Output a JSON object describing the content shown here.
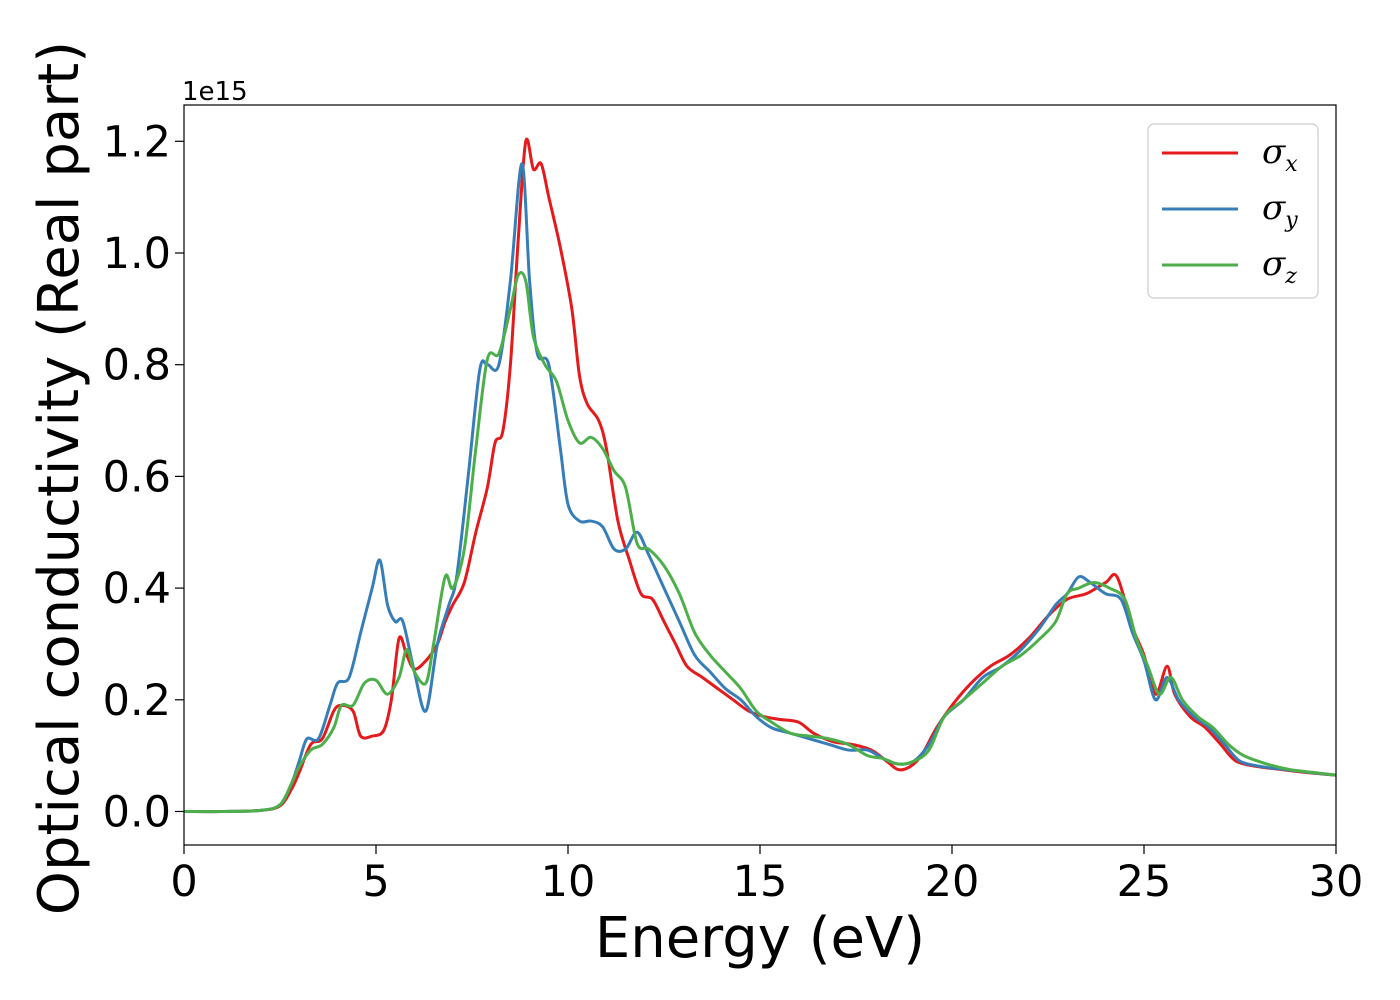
{
  "chart_data": {
    "type": "line",
    "xlabel": "Energy (eV)",
    "ylabel": "Optical conductivity (Real part)",
    "y_offset_label": "1e15",
    "y_multiplier": 1000000000000000.0,
    "xlim": [
      0,
      30
    ],
    "ylim": [
      -0.06,
      1.265
    ],
    "x_ticks": [
      0,
      5,
      10,
      15,
      20,
      25,
      30
    ],
    "y_ticks": [
      0.0,
      0.2,
      0.4,
      0.6,
      0.8,
      1.0,
      1.2
    ],
    "x_tick_labels": [
      "0",
      "5",
      "10",
      "15",
      "20",
      "25",
      "30"
    ],
    "y_tick_labels": [
      "0.0",
      "0.2",
      "0.4",
      "0.6",
      "0.8",
      "1.0",
      "1.2"
    ],
    "grid": false,
    "legend_position": "top-right",
    "series": [
      {
        "name": "σx",
        "symbol": "σ",
        "subscript": "x",
        "color": "#e41a1c",
        "points": [
          [
            0,
            0
          ],
          [
            1,
            0
          ],
          [
            2,
            0.002
          ],
          [
            2.5,
            0.01
          ],
          [
            2.8,
            0.04
          ],
          [
            3.0,
            0.07
          ],
          [
            3.3,
            0.12
          ],
          [
            3.6,
            0.13
          ],
          [
            3.9,
            0.18
          ],
          [
            4.1,
            0.19
          ],
          [
            4.4,
            0.18
          ],
          [
            4.6,
            0.135
          ],
          [
            4.9,
            0.135
          ],
          [
            5.2,
            0.145
          ],
          [
            5.4,
            0.2
          ],
          [
            5.6,
            0.31
          ],
          [
            5.8,
            0.28
          ],
          [
            6.0,
            0.255
          ],
          [
            6.3,
            0.27
          ],
          [
            6.6,
            0.3
          ],
          [
            6.8,
            0.34
          ],
          [
            7.0,
            0.37
          ],
          [
            7.3,
            0.41
          ],
          [
            7.6,
            0.5
          ],
          [
            7.9,
            0.58
          ],
          [
            8.1,
            0.66
          ],
          [
            8.3,
            0.68
          ],
          [
            8.5,
            0.8
          ],
          [
            8.7,
            1.02
          ],
          [
            8.9,
            1.2
          ],
          [
            9.1,
            1.15
          ],
          [
            9.3,
            1.16
          ],
          [
            9.5,
            1.1
          ],
          [
            9.8,
            1.01
          ],
          [
            10.1,
            0.9
          ],
          [
            10.3,
            0.78
          ],
          [
            10.5,
            0.73
          ],
          [
            10.8,
            0.7
          ],
          [
            11.0,
            0.65
          ],
          [
            11.3,
            0.52
          ],
          [
            11.6,
            0.45
          ],
          [
            11.9,
            0.39
          ],
          [
            12.2,
            0.38
          ],
          [
            12.5,
            0.34
          ],
          [
            12.8,
            0.3
          ],
          [
            13.1,
            0.26
          ],
          [
            13.5,
            0.24
          ],
          [
            13.9,
            0.22
          ],
          [
            14.3,
            0.2
          ],
          [
            14.7,
            0.18
          ],
          [
            15.1,
            0.17
          ],
          [
            15.5,
            0.165
          ],
          [
            16.0,
            0.16
          ],
          [
            16.4,
            0.14
          ],
          [
            16.9,
            0.125
          ],
          [
            17.4,
            0.12
          ],
          [
            17.9,
            0.11
          ],
          [
            18.3,
            0.09
          ],
          [
            18.6,
            0.075
          ],
          [
            18.9,
            0.08
          ],
          [
            19.2,
            0.1
          ],
          [
            19.6,
            0.15
          ],
          [
            20.0,
            0.19
          ],
          [
            20.5,
            0.23
          ],
          [
            21.0,
            0.26
          ],
          [
            21.5,
            0.28
          ],
          [
            22.0,
            0.31
          ],
          [
            22.5,
            0.35
          ],
          [
            23.0,
            0.38
          ],
          [
            23.5,
            0.39
          ],
          [
            24.0,
            0.41
          ],
          [
            24.3,
            0.42
          ],
          [
            24.7,
            0.33
          ],
          [
            25.0,
            0.28
          ],
          [
            25.3,
            0.21
          ],
          [
            25.6,
            0.26
          ],
          [
            25.8,
            0.21
          ],
          [
            26.2,
            0.17
          ],
          [
            26.6,
            0.15
          ],
          [
            27.0,
            0.12
          ],
          [
            27.4,
            0.09
          ],
          [
            28.0,
            0.08
          ],
          [
            28.6,
            0.075
          ],
          [
            29.2,
            0.07
          ],
          [
            30,
            0.065
          ]
        ]
      },
      {
        "name": "σy",
        "symbol": "σ",
        "subscript": "y",
        "color": "#377eb8",
        "points": [
          [
            0,
            0
          ],
          [
            1,
            0
          ],
          [
            2,
            0.002
          ],
          [
            2.5,
            0.012
          ],
          [
            2.8,
            0.05
          ],
          [
            3.0,
            0.09
          ],
          [
            3.2,
            0.13
          ],
          [
            3.5,
            0.13
          ],
          [
            3.8,
            0.19
          ],
          [
            4.0,
            0.23
          ],
          [
            4.3,
            0.24
          ],
          [
            4.6,
            0.32
          ],
          [
            4.9,
            0.4
          ],
          [
            5.1,
            0.45
          ],
          [
            5.3,
            0.37
          ],
          [
            5.5,
            0.34
          ],
          [
            5.7,
            0.34
          ],
          [
            6.0,
            0.25
          ],
          [
            6.3,
            0.18
          ],
          [
            6.6,
            0.3
          ],
          [
            6.9,
            0.37
          ],
          [
            7.1,
            0.42
          ],
          [
            7.4,
            0.6
          ],
          [
            7.7,
            0.79
          ],
          [
            7.9,
            0.8
          ],
          [
            8.2,
            0.8
          ],
          [
            8.5,
            0.95
          ],
          [
            8.8,
            1.16
          ],
          [
            9.0,
            0.95
          ],
          [
            9.2,
            0.82
          ],
          [
            9.5,
            0.8
          ],
          [
            9.8,
            0.65
          ],
          [
            10.0,
            0.55
          ],
          [
            10.3,
            0.52
          ],
          [
            10.6,
            0.52
          ],
          [
            10.9,
            0.51
          ],
          [
            11.2,
            0.47
          ],
          [
            11.5,
            0.47
          ],
          [
            11.8,
            0.5
          ],
          [
            12.1,
            0.46
          ],
          [
            12.5,
            0.4
          ],
          [
            12.9,
            0.34
          ],
          [
            13.3,
            0.28
          ],
          [
            13.7,
            0.25
          ],
          [
            14.1,
            0.22
          ],
          [
            14.5,
            0.2
          ],
          [
            14.9,
            0.17
          ],
          [
            15.3,
            0.15
          ],
          [
            15.8,
            0.14
          ],
          [
            16.3,
            0.13
          ],
          [
            16.8,
            0.12
          ],
          [
            17.3,
            0.11
          ],
          [
            17.8,
            0.11
          ],
          [
            18.2,
            0.095
          ],
          [
            18.6,
            0.085
          ],
          [
            19.0,
            0.09
          ],
          [
            19.4,
            0.12
          ],
          [
            19.8,
            0.17
          ],
          [
            20.3,
            0.2
          ],
          [
            20.8,
            0.24
          ],
          [
            21.3,
            0.26
          ],
          [
            21.8,
            0.29
          ],
          [
            22.3,
            0.33
          ],
          [
            22.7,
            0.37
          ],
          [
            23.0,
            0.39
          ],
          [
            23.3,
            0.42
          ],
          [
            23.6,
            0.41
          ],
          [
            24.0,
            0.39
          ],
          [
            24.4,
            0.38
          ],
          [
            24.7,
            0.32
          ],
          [
            25.0,
            0.27
          ],
          [
            25.3,
            0.2
          ],
          [
            25.6,
            0.24
          ],
          [
            25.9,
            0.2
          ],
          [
            26.3,
            0.17
          ],
          [
            26.7,
            0.15
          ],
          [
            27.1,
            0.12
          ],
          [
            27.5,
            0.09
          ],
          [
            28.1,
            0.08
          ],
          [
            28.7,
            0.075
          ],
          [
            29.3,
            0.07
          ],
          [
            30,
            0.065
          ]
        ]
      },
      {
        "name": "σz",
        "symbol": "σ",
        "subscript": "z",
        "color": "#4daf4a",
        "points": [
          [
            0,
            0
          ],
          [
            1,
            0
          ],
          [
            2,
            0.002
          ],
          [
            2.5,
            0.012
          ],
          [
            2.8,
            0.05
          ],
          [
            3.0,
            0.08
          ],
          [
            3.3,
            0.11
          ],
          [
            3.6,
            0.12
          ],
          [
            3.9,
            0.15
          ],
          [
            4.1,
            0.19
          ],
          [
            4.4,
            0.19
          ],
          [
            4.7,
            0.23
          ],
          [
            5.0,
            0.235
          ],
          [
            5.3,
            0.21
          ],
          [
            5.6,
            0.24
          ],
          [
            5.8,
            0.29
          ],
          [
            6.0,
            0.25
          ],
          [
            6.3,
            0.23
          ],
          [
            6.5,
            0.3
          ],
          [
            6.8,
            0.42
          ],
          [
            7.0,
            0.4
          ],
          [
            7.3,
            0.47
          ],
          [
            7.6,
            0.65
          ],
          [
            7.9,
            0.81
          ],
          [
            8.2,
            0.82
          ],
          [
            8.5,
            0.9
          ],
          [
            8.7,
            0.96
          ],
          [
            8.9,
            0.95
          ],
          [
            9.1,
            0.85
          ],
          [
            9.4,
            0.8
          ],
          [
            9.7,
            0.77
          ],
          [
            10.0,
            0.7
          ],
          [
            10.3,
            0.66
          ],
          [
            10.6,
            0.67
          ],
          [
            10.9,
            0.65
          ],
          [
            11.2,
            0.61
          ],
          [
            11.5,
            0.58
          ],
          [
            11.8,
            0.48
          ],
          [
            12.1,
            0.47
          ],
          [
            12.5,
            0.44
          ],
          [
            12.9,
            0.39
          ],
          [
            13.3,
            0.32
          ],
          [
            13.7,
            0.28
          ],
          [
            14.1,
            0.25
          ],
          [
            14.5,
            0.22
          ],
          [
            14.9,
            0.18
          ],
          [
            15.3,
            0.16
          ],
          [
            15.8,
            0.14
          ],
          [
            16.3,
            0.135
          ],
          [
            16.8,
            0.13
          ],
          [
            17.3,
            0.12
          ],
          [
            17.8,
            0.1
          ],
          [
            18.2,
            0.095
          ],
          [
            18.6,
            0.085
          ],
          [
            19.0,
            0.09
          ],
          [
            19.4,
            0.11
          ],
          [
            19.8,
            0.17
          ],
          [
            20.3,
            0.2
          ],
          [
            20.8,
            0.23
          ],
          [
            21.3,
            0.26
          ],
          [
            21.8,
            0.28
          ],
          [
            22.3,
            0.31
          ],
          [
            22.7,
            0.34
          ],
          [
            23.0,
            0.39
          ],
          [
            23.3,
            0.4
          ],
          [
            23.7,
            0.41
          ],
          [
            24.1,
            0.4
          ],
          [
            24.5,
            0.38
          ],
          [
            24.8,
            0.31
          ],
          [
            25.1,
            0.26
          ],
          [
            25.4,
            0.21
          ],
          [
            25.7,
            0.24
          ],
          [
            26.0,
            0.2
          ],
          [
            26.4,
            0.17
          ],
          [
            26.8,
            0.15
          ],
          [
            27.2,
            0.12
          ],
          [
            27.6,
            0.1
          ],
          [
            28.2,
            0.085
          ],
          [
            28.8,
            0.075
          ],
          [
            29.4,
            0.07
          ],
          [
            30,
            0.065
          ]
        ]
      }
    ]
  }
}
